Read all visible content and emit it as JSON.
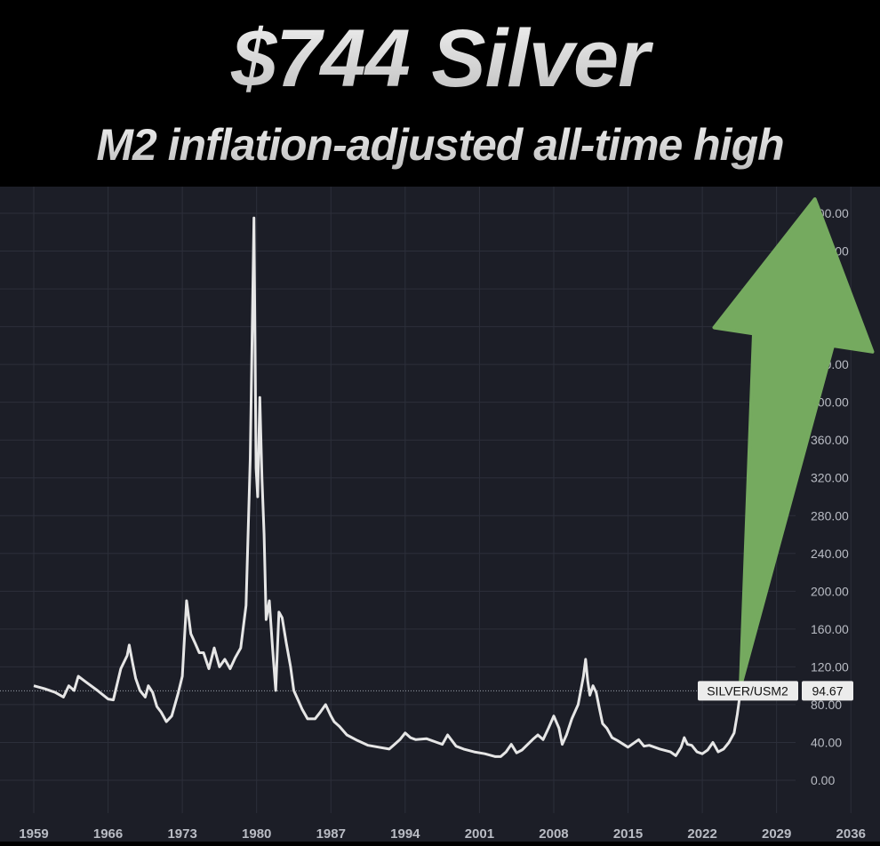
{
  "banner": {
    "title": "$744 Silver",
    "subtitle": "M2 inflation-adjusted all-time high"
  },
  "colors": {
    "background": "#1c1e27",
    "grid": "#2c2f3a",
    "line": "#e6e6e6",
    "arrow": "#75aa5f",
    "axis_text": "#b9bcc4"
  },
  "icons": [
    "green-up-arrow"
  ],
  "chart_data": {
    "type": "line",
    "title": "",
    "xlabel": "",
    "ylabel": "",
    "x_ticks": [
      1959,
      1966,
      1973,
      1980,
      1987,
      1994,
      2001,
      2008,
      2015,
      2022,
      2029,
      2036
    ],
    "y_ticks": [
      0,
      40,
      80,
      120,
      160,
      200,
      240,
      280,
      320,
      360,
      400,
      440,
      480,
      520,
      560,
      600
    ],
    "y_tick_labels": [
      "0.00",
      "40.00",
      "80.00",
      "120.00",
      "160.00",
      "200.00",
      "240.00",
      "280.00",
      "320.00",
      "360.00",
      "400.00",
      "440.00",
      "480.00",
      "520.00",
      "560.00",
      "600.00"
    ],
    "xlim": [
      1959,
      2040
    ],
    "ylim": [
      -25,
      630
    ],
    "grid": true,
    "series": [
      {
        "name": "SILVER/USM2",
        "last_value_label": "94.67",
        "x": [
          1959.0,
          1960.0,
          1961.0,
          1961.8,
          1962.3,
          1962.8,
          1963.2,
          1963.8,
          1965.0,
          1966.0,
          1966.5,
          1967.2,
          1967.8,
          1968.0,
          1968.3,
          1968.6,
          1969.0,
          1969.5,
          1969.8,
          1970.2,
          1970.6,
          1971.0,
          1971.5,
          1972.0,
          1972.6,
          1973.0,
          1973.4,
          1973.8,
          1974.2,
          1974.6,
          1975.0,
          1975.5,
          1976.0,
          1976.5,
          1977.0,
          1977.5,
          1978.0,
          1978.5,
          1979.0,
          1979.4,
          1979.75,
          1979.95,
          1980.1,
          1980.3,
          1980.5,
          1980.7,
          1980.9,
          1981.2,
          1981.5,
          1981.8,
          1982.1,
          1982.4,
          1982.8,
          1983.2,
          1983.5,
          1983.9,
          1984.3,
          1984.8,
          1985.5,
          1986.0,
          1986.5,
          1987.0,
          1987.3,
          1987.8,
          1988.5,
          1989.5,
          1990.5,
          1991.5,
          1992.5,
          1993.0,
          1993.5,
          1994.0,
          1994.5,
          1995.0,
          1996.0,
          1997.0,
          1997.5,
          1998.0,
          1998.8,
          1999.5,
          2000.5,
          2001.5,
          2002.5,
          2003.0,
          2003.5,
          2004.0,
          2004.5,
          2005.0,
          2006.0,
          2006.5,
          2007.0,
          2007.5,
          2008.0,
          2008.5,
          2008.8,
          2009.2,
          2009.7,
          2010.3,
          2010.8,
          2011.0,
          2011.2,
          2011.4,
          2011.7,
          2012.0,
          2012.3,
          2012.6,
          2013.0,
          2013.5,
          2014.0,
          2015.0,
          2016.0,
          2016.5,
          2017.0,
          2018.0,
          2019.0,
          2019.5,
          2020.0,
          2020.3,
          2020.6,
          2021.0,
          2021.5,
          2022.0,
          2022.5,
          2023.0,
          2023.5,
          2024.0,
          2024.5,
          2025.0,
          2025.3,
          2025.6
        ],
        "y": [
          100,
          97,
          93,
          88,
          100,
          95,
          110,
          105,
          95,
          86,
          85,
          118,
          132,
          143,
          125,
          108,
          95,
          88,
          100,
          93,
          78,
          72,
          62,
          68,
          92,
          110,
          190,
          155,
          145,
          135,
          135,
          118,
          140,
          120,
          128,
          118,
          130,
          140,
          185,
          340,
          595,
          330,
          300,
          405,
          320,
          260,
          170,
          190,
          140,
          95,
          178,
          172,
          145,
          120,
          95,
          85,
          75,
          65,
          65,
          72,
          80,
          68,
          62,
          57,
          48,
          42,
          37,
          35,
          33,
          38,
          43,
          50,
          45,
          43,
          44,
          40,
          38,
          48,
          36,
          33,
          30,
          28,
          25,
          25,
          30,
          38,
          29,
          32,
          43,
          48,
          43,
          55,
          68,
          55,
          38,
          48,
          65,
          80,
          110,
          128,
          105,
          90,
          100,
          93,
          76,
          60,
          55,
          45,
          42,
          35,
          43,
          36,
          37,
          33,
          30,
          26,
          35,
          45,
          38,
          37,
          30,
          28,
          32,
          40,
          30,
          33,
          40,
          50,
          70,
          94.67
        ]
      }
    ],
    "annotation_arrow": {
      "from": {
        "x": 2025.6,
        "y": 100
      },
      "to": {
        "x": 2032.6,
        "y": 615
      }
    }
  }
}
